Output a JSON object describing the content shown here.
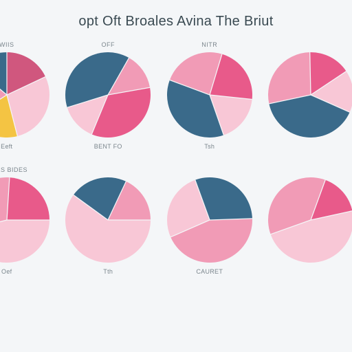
{
  "title": "opt Oft Broales Avina The Briut",
  "background_color": "#f4f6f8",
  "title_color": "#3a4a52",
  "label_color": "#7a858c",
  "title_fontsize": 20,
  "label_fontsize": 9,
  "grid": {
    "rows": 2,
    "cols": 4
  },
  "pie_radius": 60,
  "charts": [
    {
      "top_label": "WIIS",
      "bottom_label": "Eeft",
      "type": "pie",
      "rotation": -90,
      "slices": [
        {
          "value": 18,
          "color": "#d0577e"
        },
        {
          "value": 28,
          "color": "#f8c7d6"
        },
        {
          "value": 20,
          "color": "#f4c443"
        },
        {
          "value": 20,
          "color": "#f19bb6"
        },
        {
          "value": 14,
          "color": "#3a6a8a"
        }
      ]
    },
    {
      "top_label": "OFF",
      "bottom_label": "BENT FO",
      "type": "pie",
      "rotation": -10,
      "slices": [
        {
          "value": 34,
          "color": "#e85a8a"
        },
        {
          "value": 14,
          "color": "#f8c7d6"
        },
        {
          "value": 38,
          "color": "#3a6a8a"
        },
        {
          "value": 14,
          "color": "#f19bb6"
        }
      ]
    },
    {
      "top_label": "NITR",
      "bottom_label": "Tsh",
      "type": "pie",
      "rotation": 6,
      "slices": [
        {
          "value": 18,
          "color": "#f8c7d6"
        },
        {
          "value": 36,
          "color": "#3a6a8a"
        },
        {
          "value": 24,
          "color": "#f19bb6"
        },
        {
          "value": 22,
          "color": "#e85a8a"
        }
      ]
    },
    {
      "top_label": "",
      "bottom_label": "",
      "type": "pie",
      "rotation": 24,
      "slices": [
        {
          "value": 40,
          "color": "#3a6a8a"
        },
        {
          "value": 28,
          "color": "#f19bb6"
        },
        {
          "value": 16,
          "color": "#e85a8a"
        },
        {
          "value": 16,
          "color": "#f8c7d6"
        }
      ]
    },
    {
      "top_label": "MRES BIDES",
      "bottom_label": "Oef",
      "type": "pie",
      "rotation": 0,
      "slices": [
        {
          "value": 46,
          "color": "#f8c7d6"
        },
        {
          "value": 30,
          "color": "#f19bb6"
        },
        {
          "value": 24,
          "color": "#e85a8a"
        }
      ]
    },
    {
      "top_label": "",
      "bottom_label": "Tth",
      "type": "pie",
      "rotation": 0,
      "slices": [
        {
          "value": 60,
          "color": "#f8c7d6"
        },
        {
          "value": 22,
          "color": "#3a6a8a"
        },
        {
          "value": 18,
          "color": "#f19bb6"
        }
      ]
    },
    {
      "top_label": "",
      "bottom_label": "CAURET",
      "type": "pie",
      "rotation": -110,
      "slices": [
        {
          "value": 30,
          "color": "#3a6a8a"
        },
        {
          "value": 44,
          "color": "#f19bb6"
        },
        {
          "value": 26,
          "color": "#f8c7d6"
        }
      ]
    },
    {
      "top_label": "",
      "bottom_label": "",
      "type": "pie",
      "rotation": -70,
      "slices": [
        {
          "value": 16,
          "color": "#e85a8a"
        },
        {
          "value": 48,
          "color": "#f8c7d6"
        },
        {
          "value": 36,
          "color": "#f19bb6"
        }
      ]
    }
  ]
}
